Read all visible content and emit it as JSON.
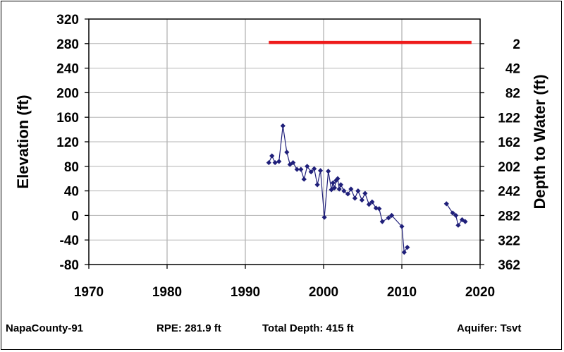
{
  "chart_data": {
    "type": "line",
    "xlim": [
      1970,
      2020
    ],
    "ylim": [
      -80,
      320
    ],
    "x_ticks": [
      1970,
      1980,
      1990,
      2000,
      2010,
      2020
    ],
    "y_ticks": [
      320,
      280,
      240,
      200,
      160,
      120,
      80,
      40,
      0,
      -40,
      -80
    ],
    "y2_ticks": [
      2,
      42,
      82,
      122,
      162,
      202,
      242,
      282,
      322,
      362
    ],
    "ylabel": "Elevation (ft)",
    "y2label": "Depth to Water (ft)",
    "grid": true,
    "colors": {
      "series": "#1f1f7a",
      "reference": "#ee1c1c",
      "grid": "#b4b4b4"
    },
    "reference_line": {
      "y": 281.9,
      "x": [
        1993.0,
        2018.9
      ]
    },
    "series": [
      {
        "marker": "diamond",
        "segments": [
          [
            [
              1993.0,
              86
            ],
            [
              1993.4,
              97
            ],
            [
              1993.8,
              86
            ],
            [
              1994.3,
              88
            ],
            [
              1994.8,
              146
            ],
            [
              1995.3,
              103
            ],
            [
              1995.7,
              83
            ],
            [
              1996.1,
              86
            ],
            [
              1996.6,
              75
            ],
            [
              1997.1,
              75
            ],
            [
              1997.5,
              59
            ],
            [
              1997.9,
              80
            ],
            [
              1998.4,
              71
            ],
            [
              1998.8,
              76
            ],
            [
              1999.2,
              50
            ],
            [
              1999.6,
              73
            ],
            [
              2000.1,
              -3
            ],
            [
              2000.6,
              72
            ],
            [
              2001.0,
              42
            ],
            [
              2001.2,
              53
            ],
            [
              2001.4,
              45
            ],
            [
              2001.6,
              57
            ],
            [
              2001.8,
              60
            ],
            [
              2002.0,
              43
            ],
            [
              2002.2,
              50
            ],
            [
              2002.6,
              40
            ],
            [
              2003.1,
              35
            ],
            [
              2003.5,
              43
            ],
            [
              2004.0,
              28
            ],
            [
              2004.4,
              40
            ],
            [
              2004.9,
              25
            ],
            [
              2005.3,
              36
            ],
            [
              2005.8,
              18
            ],
            [
              2006.2,
              22
            ],
            [
              2006.7,
              12
            ],
            [
              2007.1,
              11
            ],
            [
              2007.5,
              -10
            ],
            [
              2008.3,
              -4
            ],
            [
              2008.7,
              0
            ],
            [
              2010.0,
              -18
            ],
            [
              2010.3,
              -60
            ],
            [
              2010.7,
              -52
            ]
          ],
          [
            [
              2015.7,
              19
            ],
            [
              2016.5,
              4
            ],
            [
              2016.9,
              0
            ],
            [
              2017.2,
              -16
            ],
            [
              2017.7,
              -7
            ],
            [
              2018.1,
              -10
            ]
          ]
        ]
      }
    ]
  },
  "footer": {
    "well_id": "NapaCounty-91",
    "rpe": "RPE: 281.9 ft",
    "total_depth": "Total Depth: 415 ft",
    "aquifer": "Aquifer: Tsvt"
  }
}
